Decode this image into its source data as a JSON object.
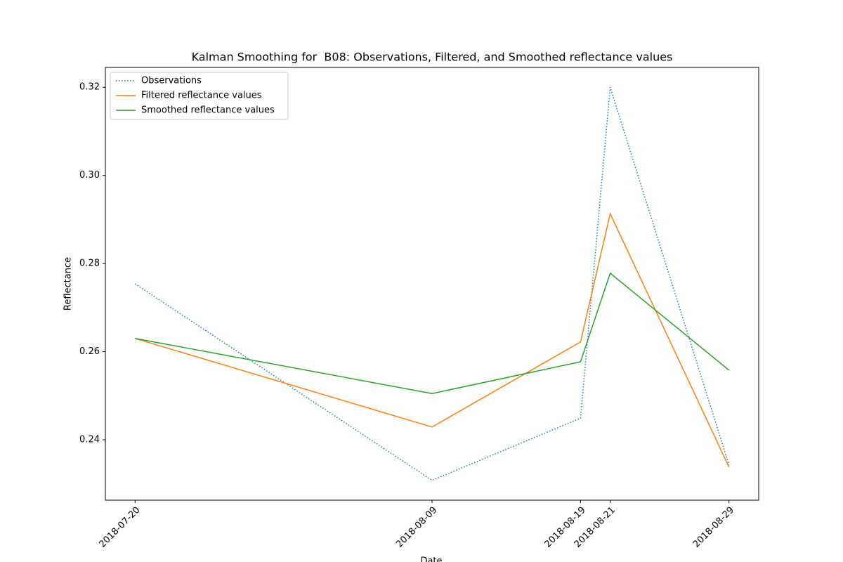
{
  "chart_data": {
    "type": "line",
    "title": "Kalman Smoothing for  B08: Observations, Filtered, and Smoothed reflectance values",
    "xlabel": "Date",
    "ylabel": "Reflectance",
    "x": [
      "2018-07-20",
      "2018-08-09",
      "2018-08-19",
      "2018-08-21",
      "2018-08-29"
    ],
    "series": [
      {
        "name": "Observations",
        "color": "#1f77b4",
        "linestyle": "dotted",
        "values": [
          0.2754,
          0.2308,
          0.2449,
          0.32,
          0.2343
        ]
      },
      {
        "name": "Filtered reflectance values",
        "color": "#ff7f0e",
        "linestyle": "solid",
        "values": [
          0.263,
          0.2429,
          0.2622,
          0.2913,
          0.2338
        ]
      },
      {
        "name": "Smoothed reflectance values",
        "color": "#2ca02c",
        "linestyle": "solid",
        "values": [
          0.263,
          0.2505,
          0.2577,
          0.2778,
          0.2558
        ]
      }
    ],
    "xlim": [
      "2018-07-18",
      "2018-08-31"
    ],
    "xticks": [
      "2018-07-20",
      "2018-08-09",
      "2018-08-19",
      "2018-08-21",
      "2018-08-29"
    ],
    "ylim": [
      0.2263,
      0.3245
    ],
    "yticks": [
      0.24,
      0.26,
      0.28,
      {
        "value": 0.3,
        "label": "0.30"
      },
      0.32
    ],
    "grid": false,
    "legend": "upper left"
  }
}
